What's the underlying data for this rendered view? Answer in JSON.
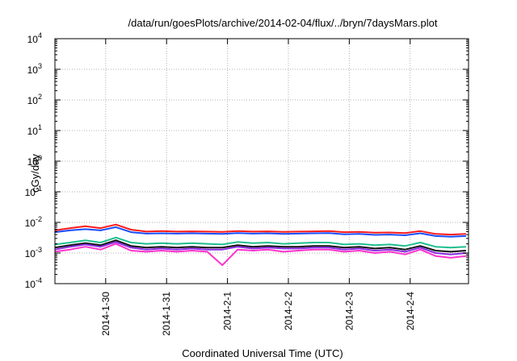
{
  "chart_data": {
    "type": "line",
    "title": "/data/run/goesPlots/archive/2014-02-04/flux/../bryn/7daysMars.plot",
    "xlabel": "Coordinated Universal Time (UTC)",
    "ylabel": "cGy/day",
    "yscale": "log",
    "ylim": [
      0.0001,
      10000
    ],
    "grid": true,
    "legend": "none",
    "xlim": [
      "2014-01-29T04:00",
      "2014-02-04T23:00"
    ],
    "x_ticks": [
      {
        "label": "2014-1-30",
        "t": "2014-01-30T00:00"
      },
      {
        "label": "2014-1-31",
        "t": "2014-01-31T00:00"
      },
      {
        "label": "2014-2-1",
        "t": "2014-02-01T00:00"
      },
      {
        "label": "2014-2-2",
        "t": "2014-02-02T00:00"
      },
      {
        "label": "2014-2-3",
        "t": "2014-02-03T00:00"
      },
      {
        "label": "2014-2-4",
        "t": "2014-02-04T00:00"
      }
    ],
    "y_ticks": [
      {
        "base": "10",
        "exp": "-4",
        "value": 0.0001
      },
      {
        "base": "10",
        "exp": "-3",
        "value": 0.001
      },
      {
        "base": "10",
        "exp": "-2",
        "value": 0.01
      },
      {
        "base": "10",
        "exp": "-1",
        "value": 0.1
      },
      {
        "base": "10",
        "exp": "0",
        "value": 1
      },
      {
        "base": "10",
        "exp": "1",
        "value": 10
      },
      {
        "base": "10",
        "exp": "2",
        "value": 100
      },
      {
        "base": "10",
        "exp": "3",
        "value": 1000
      },
      {
        "base": "10",
        "exp": "4",
        "value": 10000
      }
    ],
    "x": [
      "2014-01-29T04:00",
      "2014-01-29T10:00",
      "2014-01-29T16:00",
      "2014-01-29T22:00",
      "2014-01-30T04:00",
      "2014-01-30T10:00",
      "2014-01-30T16:00",
      "2014-01-30T22:00",
      "2014-01-31T04:00",
      "2014-01-31T10:00",
      "2014-01-31T16:00",
      "2014-01-31T22:00",
      "2014-02-01T04:00",
      "2014-02-01T10:00",
      "2014-02-01T16:00",
      "2014-02-01T22:00",
      "2014-02-02T04:00",
      "2014-02-02T10:00",
      "2014-02-02T16:00",
      "2014-02-02T22:00",
      "2014-02-03T04:00",
      "2014-02-03T10:00",
      "2014-02-03T16:00",
      "2014-02-03T22:00",
      "2014-02-04T04:00",
      "2014-02-04T10:00",
      "2014-02-04T16:00",
      "2014-02-04T22:00"
    ],
    "series": [
      {
        "color": "#ff1a1a",
        "values": [
          0.0055,
          0.0065,
          0.0075,
          0.0065,
          0.0085,
          0.0058,
          0.005,
          0.0052,
          0.005,
          0.0051,
          0.005,
          0.0049,
          0.0052,
          0.005,
          0.0051,
          0.0049,
          0.005,
          0.0051,
          0.0052,
          0.0048,
          0.0049,
          0.0046,
          0.0047,
          0.0045,
          0.0052,
          0.0042,
          0.004,
          0.0042
        ]
      },
      {
        "color": "#1a4dff",
        "values": [
          0.0048,
          0.0055,
          0.006,
          0.0055,
          0.007,
          0.0048,
          0.0043,
          0.0044,
          0.0043,
          0.0044,
          0.0043,
          0.0042,
          0.0045,
          0.0043,
          0.0044,
          0.0042,
          0.0043,
          0.0044,
          0.0045,
          0.0041,
          0.0042,
          0.0039,
          0.004,
          0.0038,
          0.0044,
          0.0036,
          0.0034,
          0.0036
        ]
      },
      {
        "color": "#1fbf8f",
        "values": [
          0.0019,
          0.0022,
          0.0026,
          0.0022,
          0.0032,
          0.0022,
          0.002,
          0.0021,
          0.002,
          0.0021,
          0.002,
          0.0019,
          0.0023,
          0.0021,
          0.0022,
          0.002,
          0.0021,
          0.0022,
          0.0022,
          0.0019,
          0.002,
          0.0018,
          0.0019,
          0.0017,
          0.0022,
          0.0016,
          0.0015,
          0.0016
        ]
      },
      {
        "color": "#111111",
        "values": [
          0.0015,
          0.0018,
          0.0021,
          0.0018,
          0.0026,
          0.0017,
          0.0015,
          0.0016,
          0.0015,
          0.0016,
          0.0015,
          0.0015,
          0.0018,
          0.0016,
          0.0017,
          0.0016,
          0.0016,
          0.0017,
          0.0017,
          0.0015,
          0.0016,
          0.0014,
          0.0015,
          0.0013,
          0.0017,
          0.0012,
          0.0011,
          0.0012
        ]
      },
      {
        "color": "#8a2be2",
        "values": [
          0.0013,
          0.0016,
          0.0019,
          0.0016,
          0.0023,
          0.0015,
          0.0013,
          0.0014,
          0.0013,
          0.0014,
          0.0013,
          0.0013,
          0.0016,
          0.0014,
          0.0015,
          0.0014,
          0.0014,
          0.0015,
          0.0015,
          0.0013,
          0.0014,
          0.0012,
          0.0013,
          0.0011,
          0.0015,
          0.001,
          0.0009,
          0.001
        ]
      },
      {
        "color": "#ff33cc",
        "values": [
          0.0011,
          0.0013,
          0.0016,
          0.0013,
          0.002,
          0.0012,
          0.0011,
          0.0012,
          0.0011,
          0.0012,
          0.0011,
          0.0004,
          0.0013,
          0.0012,
          0.0013,
          0.0011,
          0.0012,
          0.0013,
          0.0013,
          0.0011,
          0.0012,
          0.001,
          0.0011,
          0.0009,
          0.0013,
          0.0008,
          0.0007,
          0.0008
        ]
      }
    ]
  }
}
